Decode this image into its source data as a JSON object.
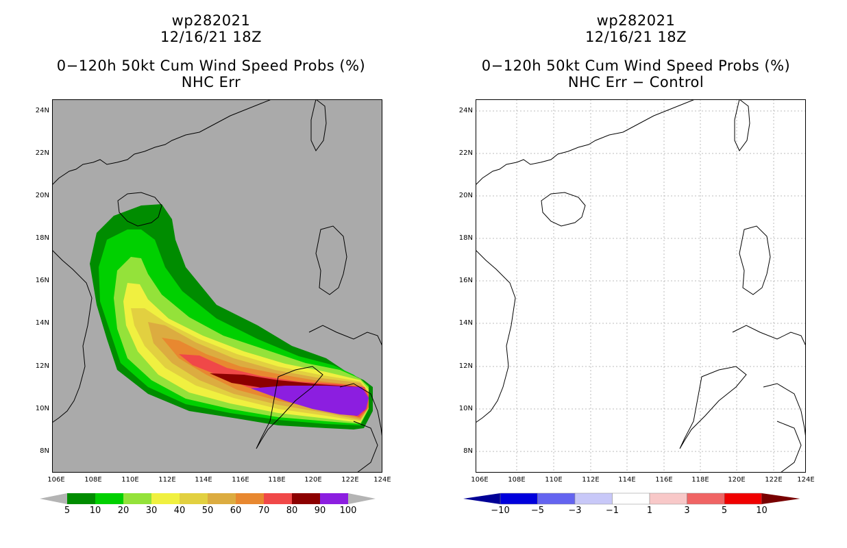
{
  "left": {
    "storm_id": "wp282021",
    "datetime": "12/16/21 18Z",
    "product": "0−120h 50kt Cum Wind Speed Probs (%)",
    "subtitle": "NHC Err",
    "legend": {
      "colors": [
        "#008c00",
        "#00d000",
        "#94e23a",
        "#f0f040",
        "#e2d040",
        "#dcac40",
        "#e88830",
        "#f04848",
        "#8c0000",
        "#8c1ee0"
      ],
      "labels": [
        "5",
        "10",
        "20",
        "30",
        "40",
        "50",
        "60",
        "70",
        "80",
        "90",
        "100"
      ],
      "end_color": "#b4b4b4"
    }
  },
  "right": {
    "storm_id": "wp282021",
    "datetime": "12/16/21 18Z",
    "product": "0−120h 50kt Cum Wind Speed Probs (%)",
    "subtitle": "NHC Err − Control",
    "legend": {
      "colors": [
        "#0000dc",
        "#6464f0",
        "#c8c8f8",
        "#ffffff",
        "#f8c8c8",
        "#f06464",
        "#f00000"
      ],
      "labels": [
        "−10",
        "−5",
        "−3",
        "−1",
        "1",
        "3",
        "5",
        "10"
      ],
      "end_left": "#000096",
      "end_right": "#780000"
    }
  },
  "axes": {
    "lat_labels": [
      "24N",
      "22N",
      "20N",
      "18N",
      "16N",
      "14N",
      "12N",
      "10N",
      "8N"
    ],
    "lon_labels": [
      "106E",
      "108E",
      "110E",
      "112E",
      "114E",
      "116E",
      "118E",
      "120E",
      "122E",
      "124E"
    ]
  },
  "map_colors": {
    "land_bg": "#aaaaaa",
    "coast": "#000000",
    "grid": "#bbbbbb"
  }
}
